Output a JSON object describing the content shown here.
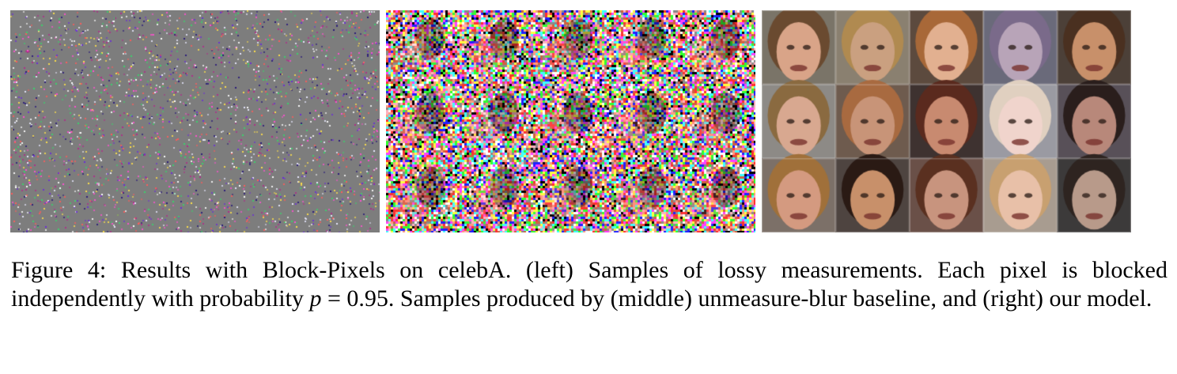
{
  "figure": {
    "panels": [
      {
        "id": "left",
        "content": "lossy-measurement-samples",
        "grid": [
          5,
          3
        ]
      },
      {
        "id": "middle",
        "content": "unmeasure-blur-samples",
        "grid": [
          5,
          3
        ]
      },
      {
        "id": "right",
        "content": "our-model-face-samples",
        "grid": [
          5,
          3
        ]
      }
    ],
    "caption": {
      "part1": "Figure 4: Results with Block-Pixels on celebA. (left) Samples of lossy measurements. Each pixel is blocked independently with probability ",
      "math_var": "p",
      "math_eq": " = ",
      "math_val": "0.95",
      "part2": ". Samples produced by (middle) unmeasure-blur baseline, and (right) our model."
    }
  }
}
